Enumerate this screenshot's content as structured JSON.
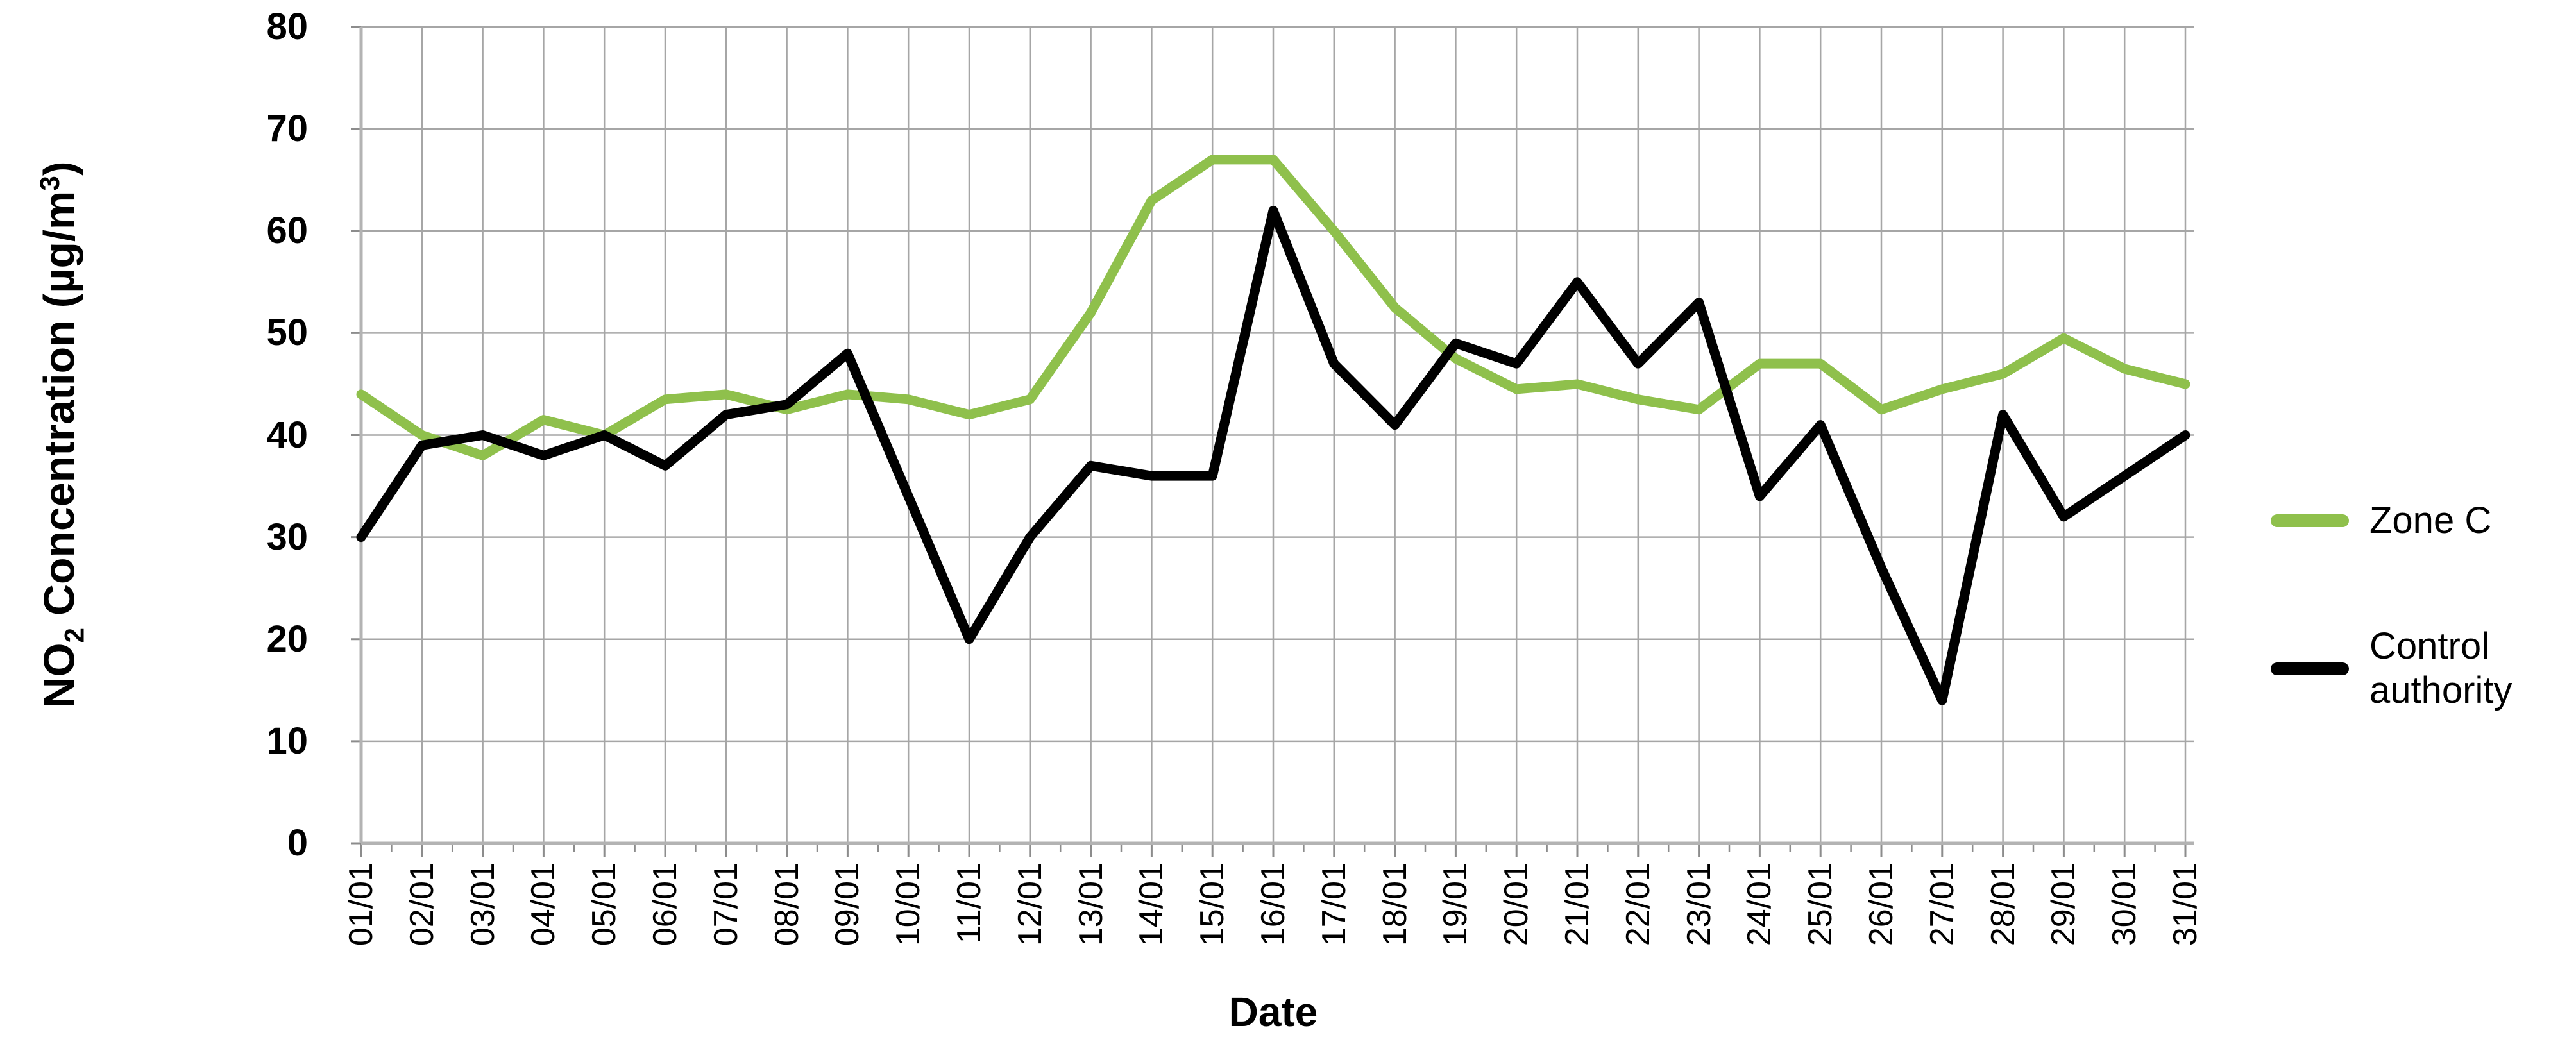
{
  "chart_data": {
    "type": "line",
    "title": "",
    "xlabel": "Date",
    "ylabel": "NO2 Concentration (µg/m3)",
    "ylim": [
      0,
      80
    ],
    "ytick_step": 10,
    "grid": true,
    "legend_position": "right",
    "categories": [
      "01/01",
      "02/01",
      "03/01",
      "04/01",
      "05/01",
      "06/01",
      "07/01",
      "08/01",
      "09/01",
      "10/01",
      "11/01",
      "12/01",
      "13/01",
      "14/01",
      "15/01",
      "16/01",
      "17/01",
      "18/01",
      "19/01",
      "20/01",
      "21/01",
      "22/01",
      "23/01",
      "24/01",
      "25/01",
      "26/01",
      "27/01",
      "28/01",
      "29/01",
      "30/01",
      "31/01"
    ],
    "series": [
      {
        "name": "Zone C",
        "color": "#8fc04c",
        "values": [
          44,
          40,
          38,
          41.5,
          40,
          43.5,
          44,
          42.5,
          44,
          43.5,
          42,
          43.5,
          52,
          63,
          67,
          67,
          60,
          52.5,
          47.5,
          44.5,
          45,
          43.5,
          42.5,
          47,
          47,
          42.5,
          44.5,
          46,
          49.5,
          46.5,
          45
        ]
      },
      {
        "name": "Control authority",
        "color": "#000000",
        "values": [
          30,
          39,
          40,
          38,
          40,
          37,
          42,
          43,
          48,
          34,
          20,
          30,
          37,
          36,
          36,
          62,
          47,
          41,
          49,
          47,
          55,
          47,
          53,
          34,
          41,
          27,
          14,
          42,
          32,
          36,
          40
        ]
      }
    ]
  },
  "y_axis": {
    "title_pre": "NO",
    "title_sub": "2",
    "title_mid": " Concentration (µg/m",
    "title_sup": "3",
    "title_post": ")"
  },
  "x_axis": {
    "title": "Date"
  },
  "style": {
    "grid_color": "#a6a6a6",
    "axis_color": "#b3b3b3",
    "tick_color": "#8c8c8c"
  }
}
